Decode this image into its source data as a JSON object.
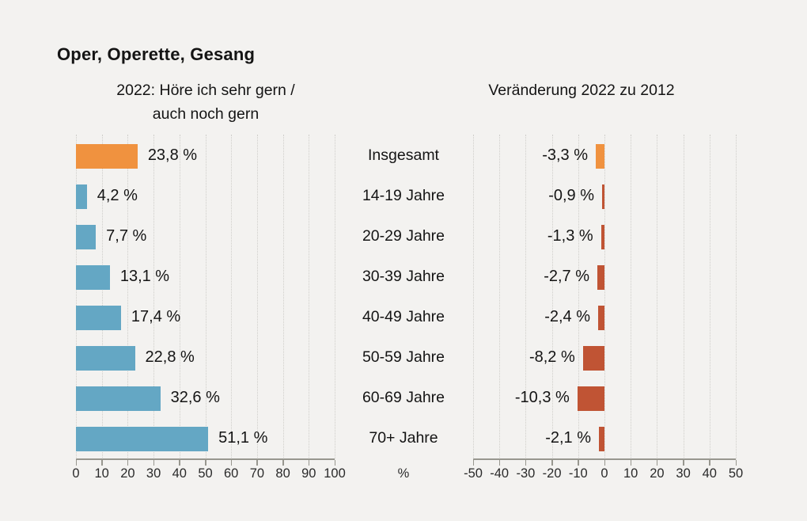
{
  "title": "Oper, Operette, Gesang",
  "chart_data": {
    "type": "bar",
    "orientation": "horizontal",
    "categories": [
      "Insgesamt",
      "14-19 Jahre",
      "20-29 Jahre",
      "30-39 Jahre",
      "40-49 Jahre",
      "50-59 Jahre",
      "60-69 Jahre",
      "70+ Jahre"
    ],
    "colors": {
      "highlight_bar": "#f0923f",
      "left_bar": "#64a7c4",
      "right_bar": "#c05434",
      "gridline": "#cfceca",
      "axis": "#98978f",
      "background": "#f3f2f0",
      "text": "#141414"
    },
    "panels": [
      {
        "title_lines": [
          "2022: Höre ich sehr gern /",
          "auch noch gern"
        ],
        "values": [
          23.8,
          4.2,
          7.7,
          13.1,
          17.4,
          22.8,
          32.6,
          51.1
        ],
        "value_labels": [
          "23,8 %",
          "4,2 %",
          "7,7 %",
          "13,1 %",
          "17,4 %",
          "22,8 %",
          "32,6 %",
          "51,1 %"
        ],
        "axis": {
          "min": 0,
          "max": 100,
          "ticks": [
            0,
            10,
            20,
            30,
            40,
            50,
            60,
            70,
            80,
            90,
            100
          ],
          "unit": "%"
        },
        "grid": true,
        "highlight_index": 0
      },
      {
        "title_lines": [
          "Veränderung 2022 zu 2012"
        ],
        "values": [
          -3.3,
          -0.9,
          -1.3,
          -2.7,
          -2.4,
          -8.2,
          -10.3,
          -2.1
        ],
        "value_labels": [
          "-3,3 %",
          "-0,9 %",
          "-1,3 %",
          "-2,7 %",
          "-2,4 %",
          "-8,2 %",
          "-10,3 %",
          "-2,1 %"
        ],
        "axis": {
          "min": -50,
          "max": 50,
          "ticks": [
            -50,
            -40,
            -30,
            -20,
            -10,
            0,
            10,
            20,
            30,
            40,
            50
          ],
          "unit": ""
        },
        "grid": true,
        "highlight_index": 0
      }
    ]
  }
}
